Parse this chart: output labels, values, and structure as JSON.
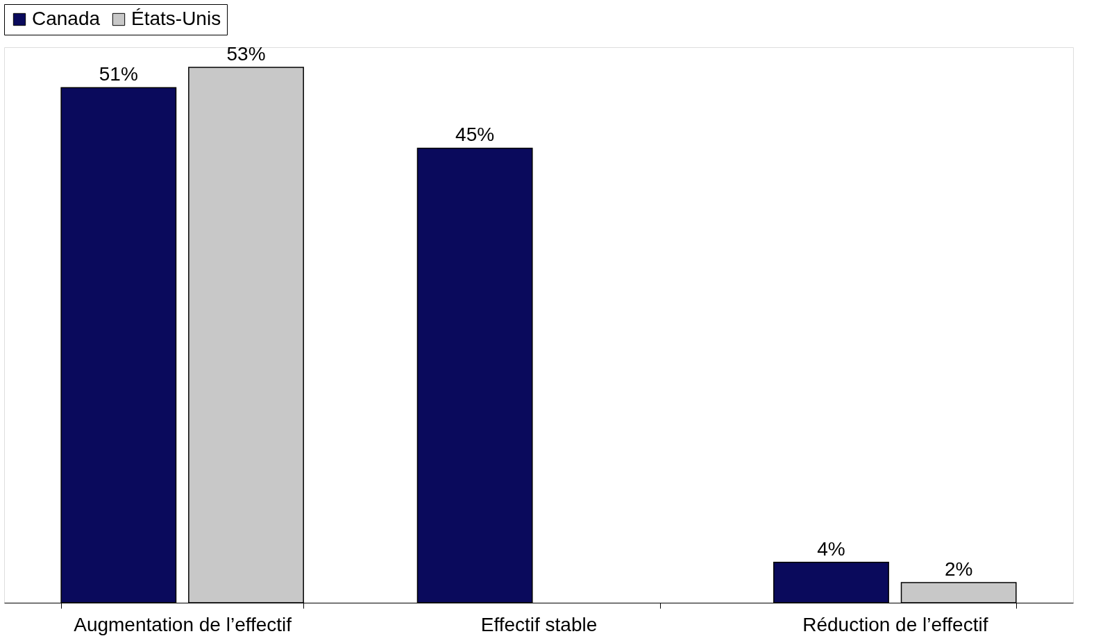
{
  "chart_data": {
    "type": "bar",
    "categories": [
      "Augmentation de l’effectif",
      "Effectif stable",
      "Réduction de l’effectif"
    ],
    "series": [
      {
        "name": "Canada",
        "color": "#0a0a5c",
        "values": [
          51,
          45,
          4
        ],
        "value_labels": [
          "51%",
          "45%",
          "4%"
        ]
      },
      {
        "name": "États-Unis",
        "color": "#c8c8c8",
        "values": [
          53,
          null,
          2
        ],
        "value_labels": [
          "53%",
          null,
          "2%"
        ]
      }
    ],
    "legend": "top",
    "grid": false,
    "tick_labels": "x"
  }
}
